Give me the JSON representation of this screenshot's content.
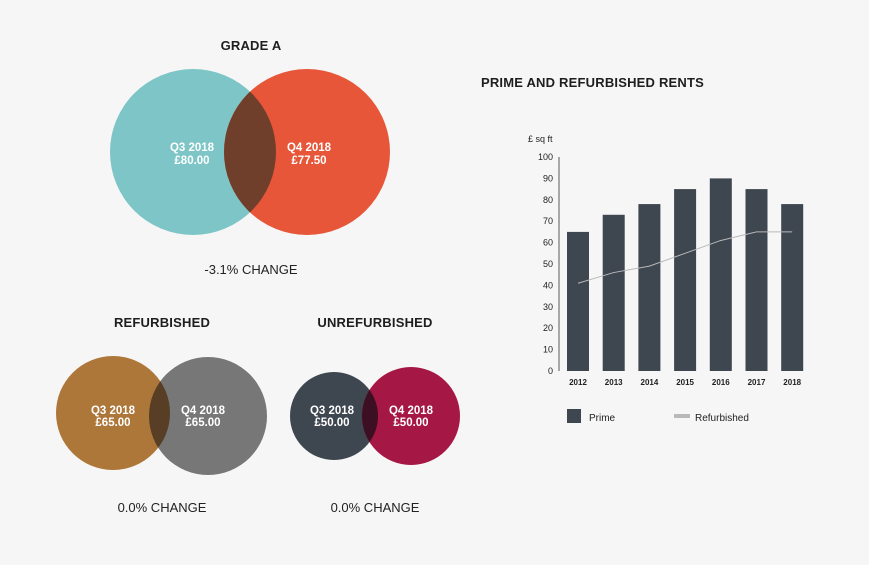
{
  "venn": [
    {
      "title": "GRADE A",
      "left": {
        "period": "Q3 2018",
        "value": "£80.00",
        "color": "#7dc5c6"
      },
      "right": {
        "period": "Q4 2018",
        "value": "£77.50",
        "color": "#e75638"
      },
      "overlap_color": "#6f3f2b",
      "change": "-3.1% CHANGE"
    },
    {
      "title": "REFURBISHED",
      "left": {
        "period": "Q3 2018",
        "value": "£65.00",
        "color": "#ae773a"
      },
      "right": {
        "period": "Q4 2018",
        "value": "£65.00",
        "color": "#767776"
      },
      "overlap_color": "#573e24",
      "change": "0.0% CHANGE"
    },
    {
      "title": "UNREFURBISHED",
      "left": {
        "period": "Q3 2018",
        "value": "£50.00",
        "color": "#3e4650"
      },
      "right": {
        "period": "Q4 2018",
        "value": "£50.00",
        "color": "#a51745"
      },
      "overlap_color": "#3d0f23",
      "change": "0.0% CHANGE"
    }
  ],
  "chart_data": {
    "type": "bar",
    "title": "PRIME AND REFURBISHED RENTS",
    "ylabel": "£ sq ft",
    "xlabel": "",
    "ylim": [
      0,
      100
    ],
    "yticks": [
      0,
      10,
      20,
      30,
      40,
      50,
      60,
      70,
      80,
      90,
      100
    ],
    "categories": [
      "2012",
      "2013",
      "2014",
      "2015",
      "2016",
      "2017",
      "2018"
    ],
    "series": [
      {
        "name": "Prime",
        "type": "bar",
        "color": "#3e4650",
        "values": [
          65,
          73,
          78,
          85,
          90,
          85,
          78
        ]
      },
      {
        "name": "Refurbished",
        "type": "line",
        "color": "#b9b9b9",
        "values": [
          41,
          46,
          49,
          55,
          61,
          65,
          65
        ]
      }
    ],
    "legend": "bottom"
  }
}
